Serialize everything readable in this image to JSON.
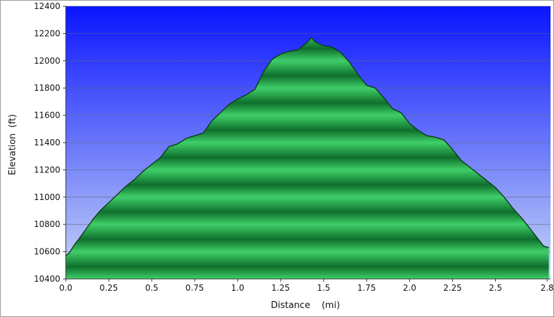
{
  "chart_data": {
    "type": "area",
    "title": "",
    "xlabel": "Distance    (mi)",
    "ylabel": "Elevation  (ft)",
    "xlim": [
      0,
      2.82
    ],
    "ylim": [
      10400,
      12400
    ],
    "x_ticks": [
      0,
      0.25,
      0.5,
      0.75,
      1.0,
      1.25,
      1.5,
      1.75,
      2.0,
      2.25,
      2.5,
      2.8
    ],
    "x_tick_labels": [
      "0.0",
      "0.25",
      "0.5",
      "0.75",
      "1.0",
      "1.25",
      "1.5",
      "1.75",
      "2.0",
      "2.25",
      "2.5",
      "2.8"
    ],
    "y_ticks": [
      10400,
      10600,
      10800,
      11000,
      11200,
      11400,
      11600,
      11800,
      12000,
      12200,
      12400
    ],
    "y_tick_labels": [
      "10400",
      "10600",
      "10800",
      "11000",
      "11200",
      "11400",
      "11600",
      "11800",
      "12000",
      "12200",
      "12400"
    ],
    "grid": true,
    "legend": "none",
    "colors": {
      "sky_top": "#0a14ff",
      "sky_bottom": "#c8d8f6",
      "fill_light": "#3fcf68",
      "fill_dark": "#0f6f2c",
      "outline": "#0a3a18",
      "gridline": "#5a6878"
    },
    "series": [
      {
        "x": [
          0.0,
          0.02,
          0.05,
          0.08,
          0.12,
          0.16,
          0.2,
          0.25,
          0.3,
          0.35,
          0.4,
          0.45,
          0.5,
          0.55,
          0.6,
          0.65,
          0.7,
          0.75,
          0.8,
          0.85,
          0.9,
          0.95,
          1.0,
          1.05,
          1.1,
          1.15,
          1.2,
          1.25,
          1.3,
          1.35,
          1.4,
          1.43,
          1.45,
          1.5,
          1.55,
          1.6,
          1.65,
          1.7,
          1.75,
          1.8,
          1.85,
          1.9,
          1.95,
          2.0,
          2.05,
          2.1,
          2.15,
          2.2,
          2.25,
          2.3,
          2.35,
          2.4,
          2.45,
          2.5,
          2.55,
          2.6,
          2.65,
          2.7,
          2.75,
          2.78,
          2.81
        ],
        "y": [
          10570,
          10590,
          10650,
          10700,
          10770,
          10840,
          10900,
          10960,
          11020,
          11080,
          11130,
          11190,
          11240,
          11290,
          11370,
          11390,
          11430,
          11450,
          11470,
          11560,
          11620,
          11680,
          11720,
          11750,
          11790,
          11920,
          12010,
          12050,
          12070,
          12080,
          12130,
          12170,
          12140,
          12110,
          12100,
          12060,
          11990,
          11900,
          11820,
          11800,
          11730,
          11650,
          11620,
          11540,
          11490,
          11450,
          11440,
          11420,
          11350,
          11270,
          11220,
          11170,
          11120,
          11070,
          11000,
          10920,
          10850,
          10770,
          10690,
          10640,
          10630
        ]
      }
    ]
  }
}
